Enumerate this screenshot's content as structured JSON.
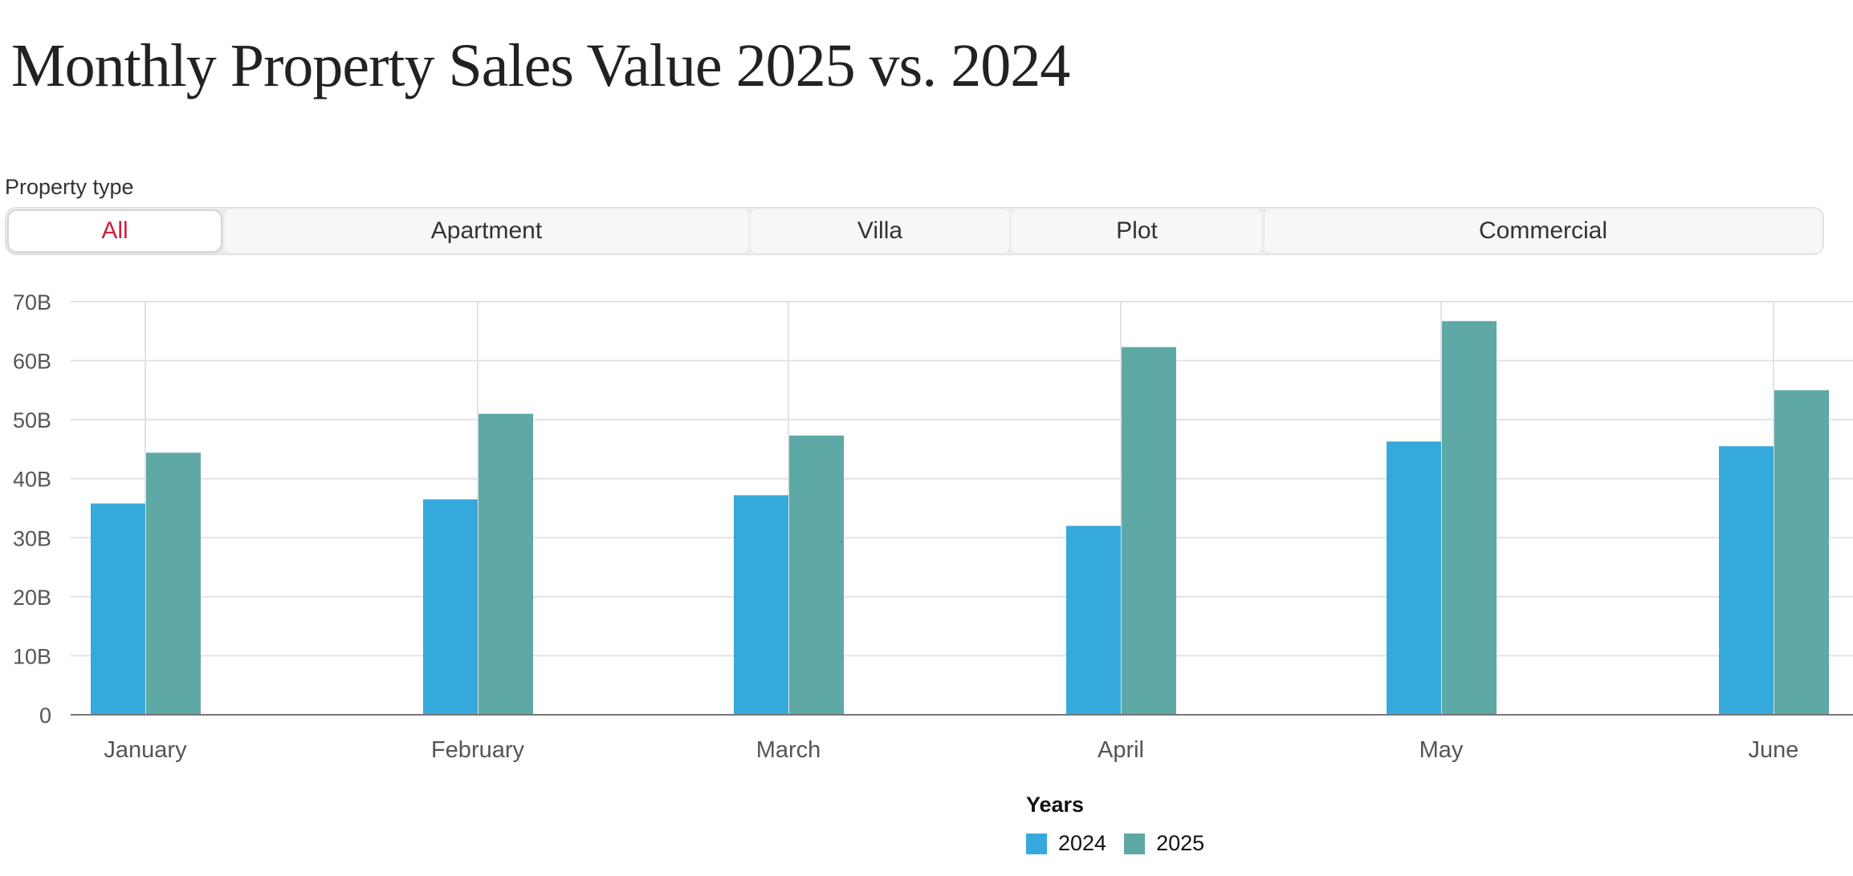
{
  "title": "Monthly Property Sales Value 2025 vs. 2024",
  "filter": {
    "label": "Property type",
    "options": [
      "All",
      "Apartment",
      "Villa",
      "Plot",
      "Commercial"
    ],
    "selected": "All"
  },
  "colors": {
    "series_2024": "#36a9dc",
    "series_2025": "#5ea8a5",
    "active_filter": "#d21f3c"
  },
  "legend": {
    "title": "Years",
    "items": [
      "2024",
      "2025"
    ]
  },
  "chart_data": {
    "type": "bar",
    "title": "Monthly Property Sales Value 2025 vs. 2024",
    "categories": [
      "January",
      "February",
      "March",
      "April",
      "May",
      "June"
    ],
    "series": [
      {
        "name": "2024",
        "values": [
          35.8,
          36.5,
          37.2,
          32.0,
          46.3,
          45.5
        ]
      },
      {
        "name": "2025",
        "values": [
          44.4,
          51.0,
          47.3,
          62.3,
          66.7,
          55.0
        ]
      }
    ],
    "ylim": [
      0,
      70
    ],
    "yticks": [
      0,
      10,
      20,
      30,
      40,
      50,
      60,
      70
    ],
    "ytick_labels": [
      "0",
      "10B",
      "20B",
      "30B",
      "40B",
      "50B",
      "60B",
      "70B"
    ],
    "xlabel": "",
    "ylabel": "",
    "grid": true,
    "legend_position": "bottom"
  }
}
